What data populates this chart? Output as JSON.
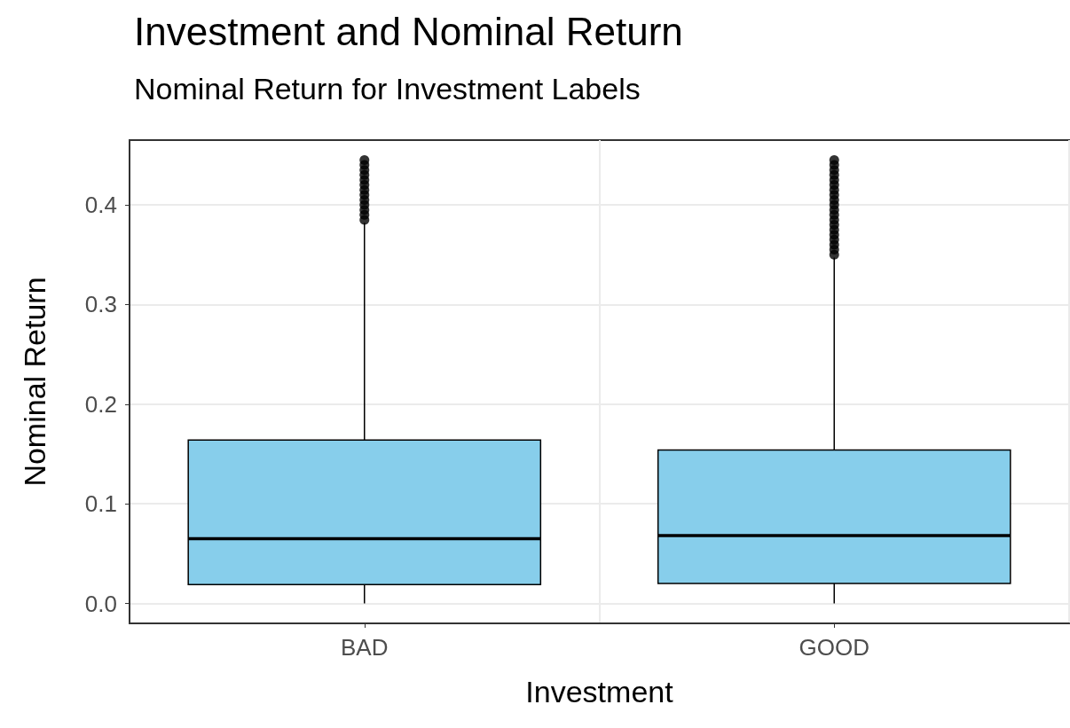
{
  "chart_data": {
    "type": "box",
    "title": "Investment and Nominal Return",
    "subtitle": "Nominal Return for Investment Labels",
    "xlabel": "Investment",
    "ylabel": "Nominal Return",
    "categories": [
      "BAD",
      "GOOD"
    ],
    "series": [
      {
        "color": "#87ceeb",
        "boxes": [
          {
            "low": 0.0,
            "q1": 0.019,
            "median": 0.065,
            "q3": 0.164,
            "high": 0.382,
            "outliers": [
              0.385,
              0.39,
              0.395,
              0.4,
              0.405,
              0.41,
              0.415,
              0.42,
              0.425,
              0.43,
              0.435,
              0.44,
              0.445
            ]
          },
          {
            "low": 0.0,
            "q1": 0.02,
            "median": 0.068,
            "q3": 0.154,
            "high": 0.347,
            "outliers": [
              0.35,
              0.355,
              0.36,
              0.365,
              0.37,
              0.375,
              0.38,
              0.385,
              0.39,
              0.395,
              0.4,
              0.405,
              0.41,
              0.415,
              0.42,
              0.425,
              0.43,
              0.435,
              0.44,
              0.445
            ]
          }
        ]
      }
    ],
    "ylim": [
      -0.02,
      0.465
    ],
    "yticks": [
      {
        "value": 0,
        "label": "0.0"
      },
      0.1,
      0.2,
      0.3,
      0.4
    ],
    "grid": true
  }
}
